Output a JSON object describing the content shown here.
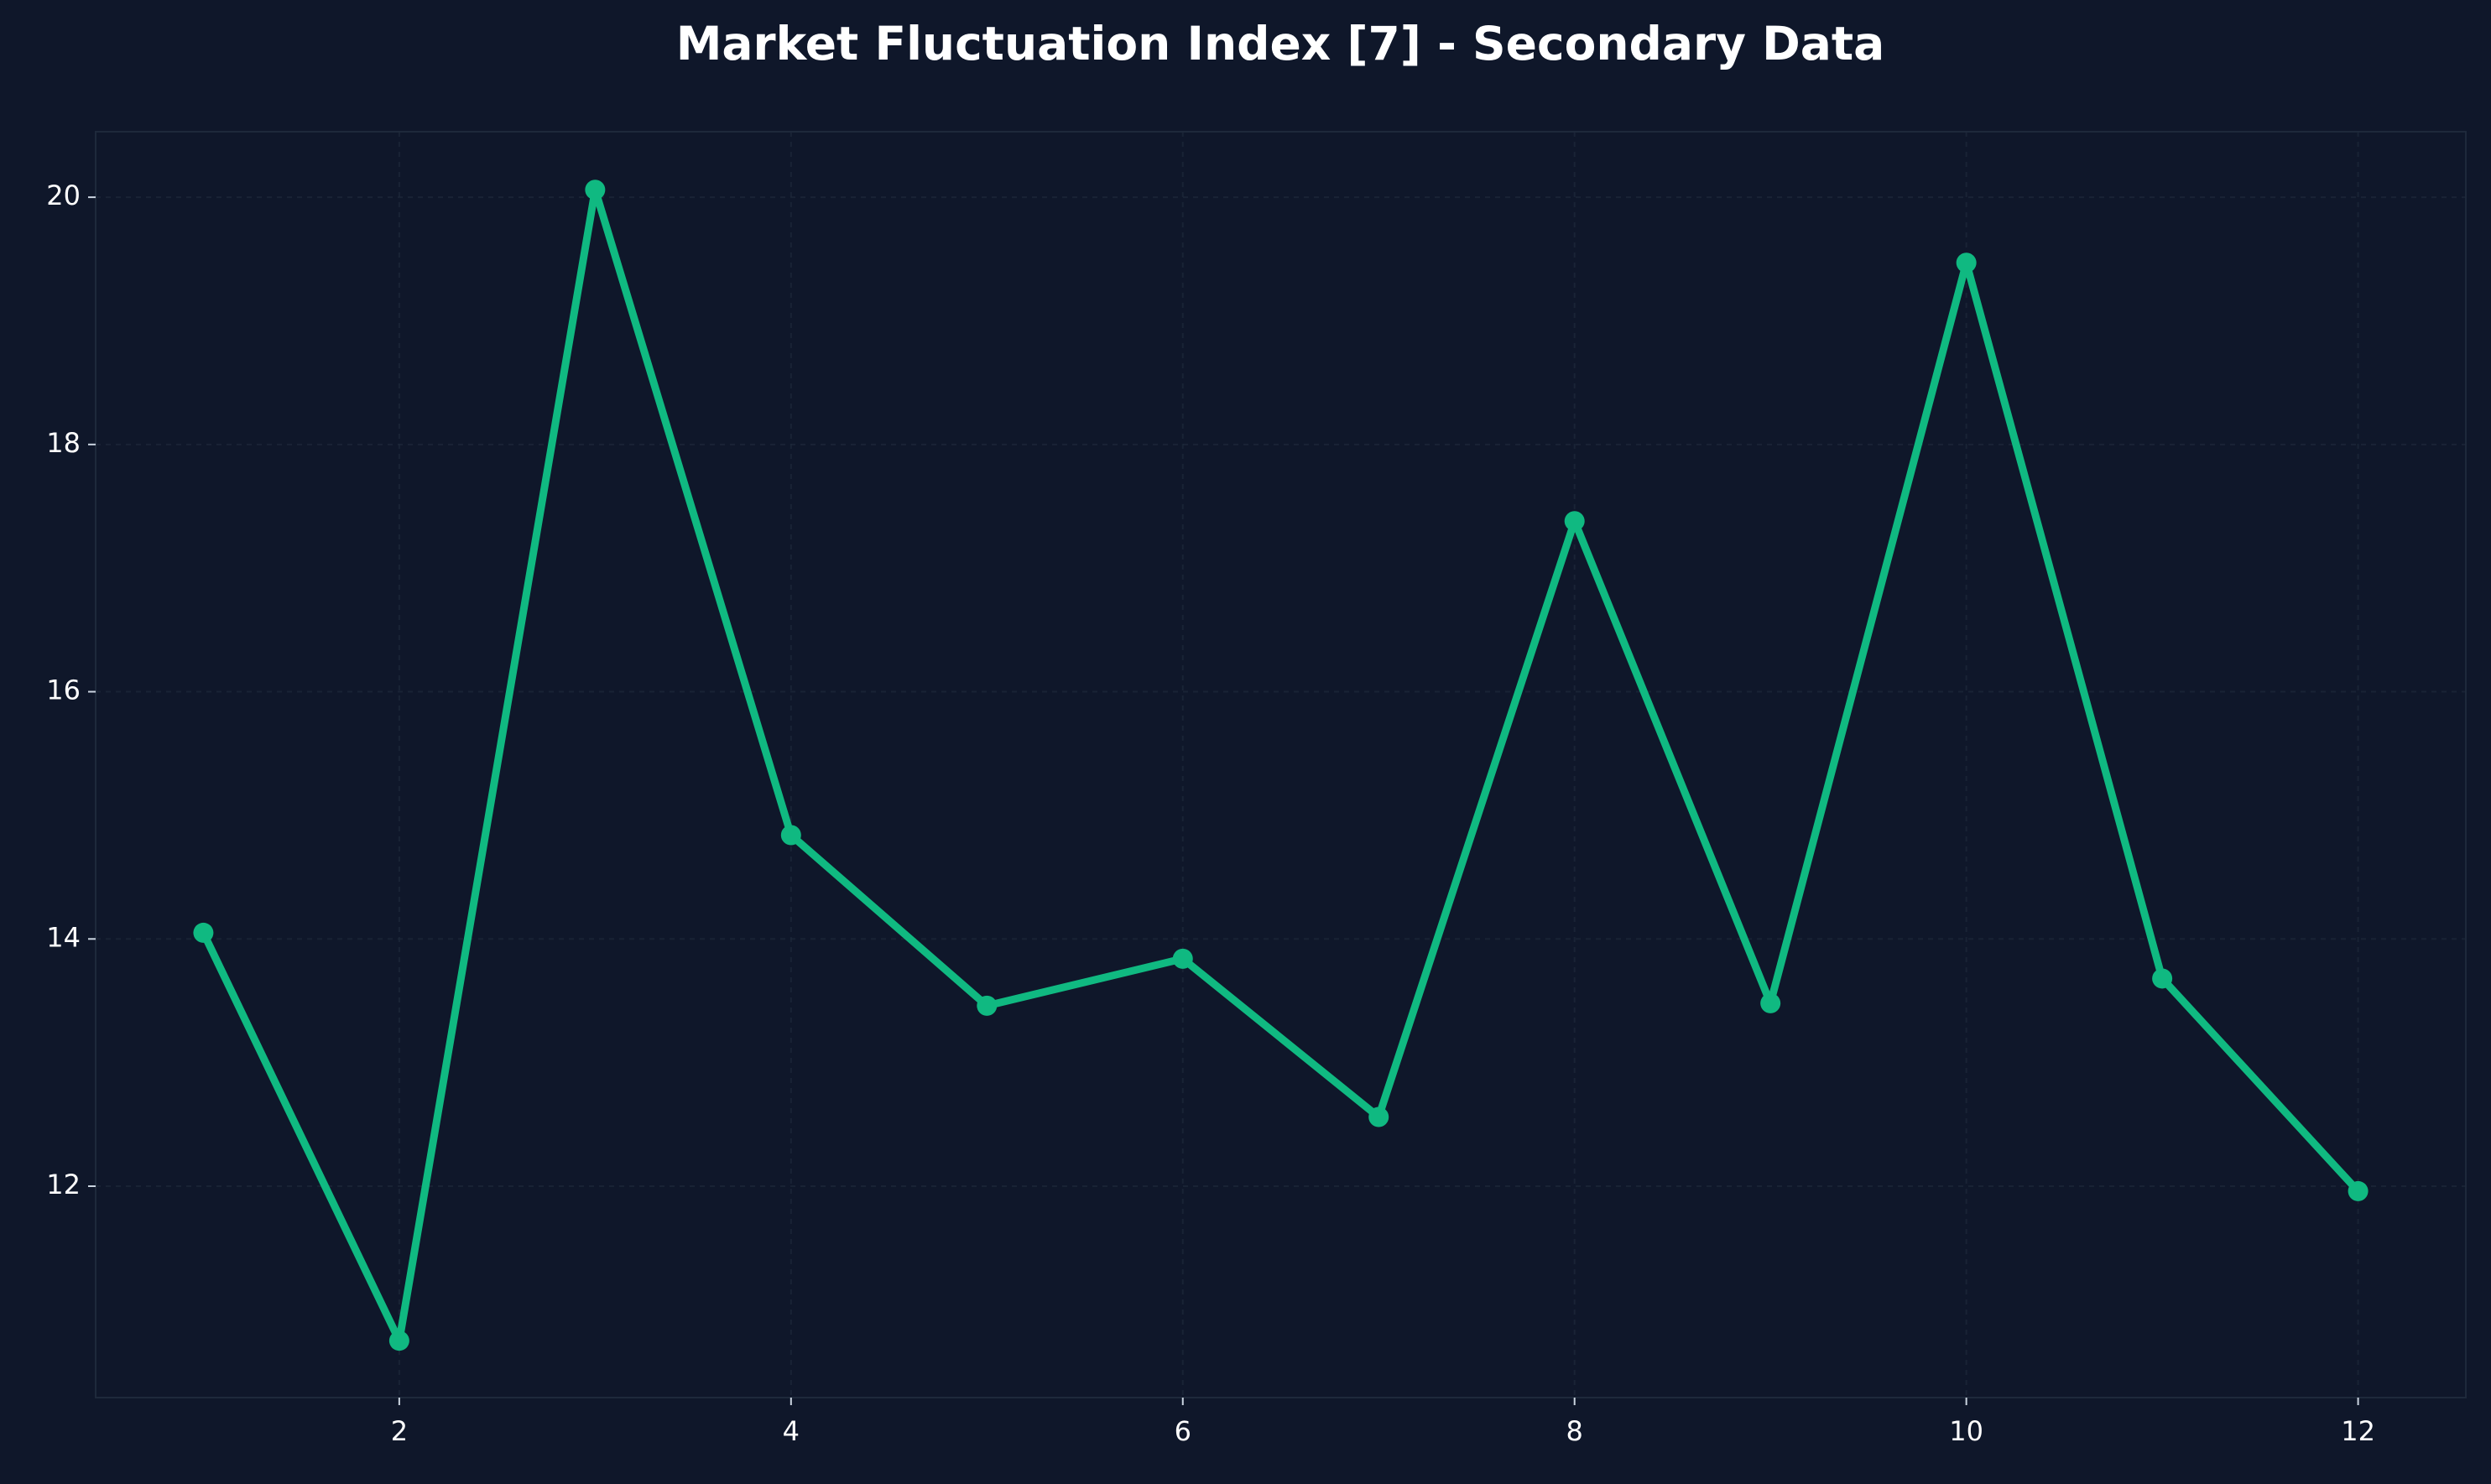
{
  "chart_data": {
    "type": "line",
    "title": "Market Fluctuation Index [7] - Secondary Data",
    "x": [
      1,
      2,
      3,
      4,
      5,
      6,
      7,
      8,
      9,
      10,
      11,
      12
    ],
    "series": [
      {
        "color": "#10b981",
        "values": [
          14.05,
          10.75,
          20.06,
          14.84,
          13.46,
          13.84,
          12.56,
          17.38,
          13.48,
          19.47,
          13.68,
          11.96
        ]
      }
    ],
    "xlim": [
      0.45,
      12.55
    ],
    "xticks": [
      2,
      4,
      6,
      8,
      10,
      12
    ],
    "ylim": [
      10.29,
      20.53
    ],
    "yticks": [
      12,
      14,
      16,
      18,
      20
    ],
    "grid": true
  }
}
